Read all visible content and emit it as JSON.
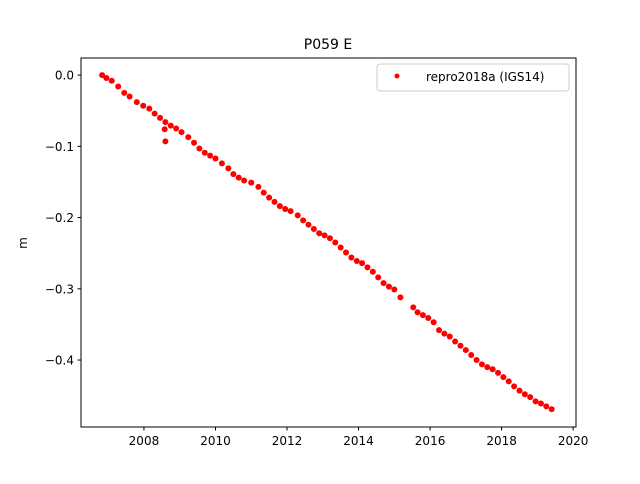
{
  "chart_data": {
    "type": "scatter",
    "title": "P059 E",
    "xlabel": "",
    "ylabel": "m",
    "xlim": [
      2006.24,
      2020.08
    ],
    "ylim": [
      -0.494,
      0.024
    ],
    "xticks": [
      2008,
      2010,
      2012,
      2014,
      2016,
      2018,
      2020
    ],
    "xtick_labels": [
      "2008",
      "2010",
      "2012",
      "2014",
      "2016",
      "2018",
      "2020"
    ],
    "yticks": [
      0.0,
      -0.1,
      -0.2,
      -0.3,
      -0.4
    ],
    "ytick_labels": [
      "0.0",
      "−0.1",
      "−0.2",
      "−0.3",
      "−0.4"
    ],
    "grid": false,
    "legend_position": "top-right",
    "series": [
      {
        "name": "repro2018a (IGS14)",
        "color": "#ff0000",
        "marker": "circle",
        "points": [
          [
            2006.83,
            0.0
          ],
          [
            2006.95,
            -0.004
          ],
          [
            2007.1,
            -0.008
          ],
          [
            2007.28,
            -0.016
          ],
          [
            2007.45,
            -0.025
          ],
          [
            2007.6,
            -0.03
          ],
          [
            2007.8,
            -0.038
          ],
          [
            2007.98,
            -0.043
          ],
          [
            2008.15,
            -0.047
          ],
          [
            2008.3,
            -0.054
          ],
          [
            2008.45,
            -0.06
          ],
          [
            2008.6,
            -0.066
          ],
          [
            2008.75,
            -0.071
          ],
          [
            2008.9,
            -0.075
          ],
          [
            2009.05,
            -0.08
          ],
          [
            2009.24,
            -0.087
          ],
          [
            2009.4,
            -0.095
          ],
          [
            2009.55,
            -0.103
          ],
          [
            2009.7,
            -0.109
          ],
          [
            2009.85,
            -0.113
          ],
          [
            2010.0,
            -0.117
          ],
          [
            2010.18,
            -0.124
          ],
          [
            2010.36,
            -0.131
          ],
          [
            2010.5,
            -0.139
          ],
          [
            2010.65,
            -0.144
          ],
          [
            2010.8,
            -0.148
          ],
          [
            2011.0,
            -0.151
          ],
          [
            2011.2,
            -0.157
          ],
          [
            2011.35,
            -0.165
          ],
          [
            2011.5,
            -0.172
          ],
          [
            2011.65,
            -0.178
          ],
          [
            2011.8,
            -0.184
          ],
          [
            2011.95,
            -0.188
          ],
          [
            2012.1,
            -0.191
          ],
          [
            2012.3,
            -0.197
          ],
          [
            2012.45,
            -0.204
          ],
          [
            2012.6,
            -0.21
          ],
          [
            2012.75,
            -0.216
          ],
          [
            2012.9,
            -0.222
          ],
          [
            2013.05,
            -0.225
          ],
          [
            2013.2,
            -0.229
          ],
          [
            2013.35,
            -0.235
          ],
          [
            2013.5,
            -0.242
          ],
          [
            2013.65,
            -0.249
          ],
          [
            2013.8,
            -0.256
          ],
          [
            2013.95,
            -0.261
          ],
          [
            2014.1,
            -0.264
          ],
          [
            2014.25,
            -0.27
          ],
          [
            2014.4,
            -0.276
          ],
          [
            2014.55,
            -0.284
          ],
          [
            2014.7,
            -0.292
          ],
          [
            2014.85,
            -0.297
          ],
          [
            2015.0,
            -0.301
          ],
          [
            2015.17,
            -0.312
          ],
          [
            2008.58,
            -0.076
          ],
          [
            2008.6,
            -0.093
          ],
          [
            2015.53,
            -0.326
          ],
          [
            2015.65,
            -0.333
          ],
          [
            2015.8,
            -0.337
          ],
          [
            2015.95,
            -0.341
          ],
          [
            2016.1,
            -0.347
          ],
          [
            2016.25,
            -0.358
          ],
          [
            2016.4,
            -0.363
          ],
          [
            2016.55,
            -0.367
          ],
          [
            2016.7,
            -0.374
          ],
          [
            2016.85,
            -0.38
          ],
          [
            2017.0,
            -0.386
          ],
          [
            2017.15,
            -0.393
          ],
          [
            2017.3,
            -0.4
          ],
          [
            2017.45,
            -0.406
          ],
          [
            2017.6,
            -0.41
          ],
          [
            2017.75,
            -0.413
          ],
          [
            2017.9,
            -0.418
          ],
          [
            2018.05,
            -0.424
          ],
          [
            2018.2,
            -0.43
          ],
          [
            2018.35,
            -0.437
          ],
          [
            2018.5,
            -0.443
          ],
          [
            2018.65,
            -0.448
          ],
          [
            2018.8,
            -0.452
          ],
          [
            2018.95,
            -0.458
          ],
          [
            2019.1,
            -0.461
          ],
          [
            2019.25,
            -0.465
          ],
          [
            2019.4,
            -0.469
          ]
        ]
      }
    ]
  }
}
